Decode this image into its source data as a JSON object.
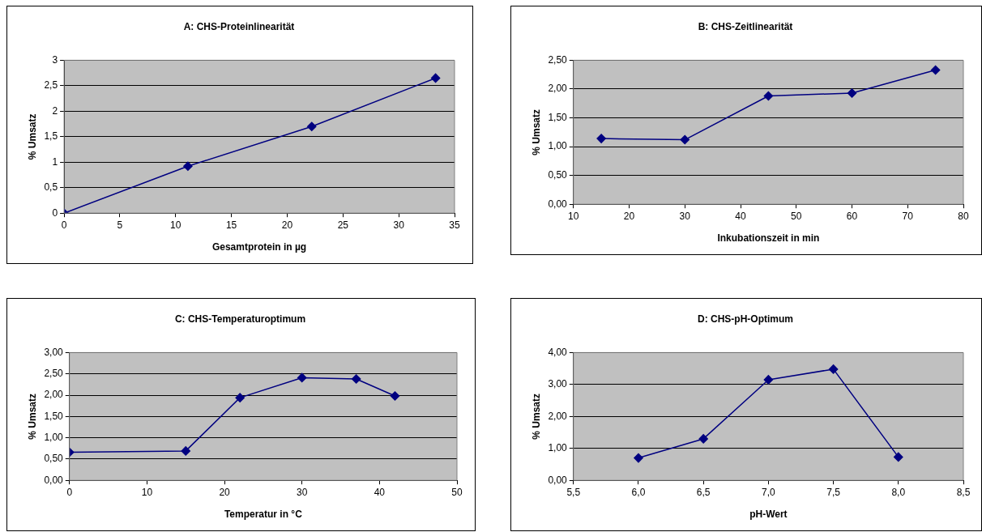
{
  "chart_data": [
    {
      "type": "line",
      "title": "A: CHS-Proteinlinearität",
      "xlabel": "Gesamtprotein in µg",
      "ylabel": "% Umsatz",
      "x": [
        0,
        11.1,
        22.2,
        33.3
      ],
      "series": [
        {
          "color": "#000080",
          "values": [
            0,
            0.92,
            1.7,
            2.65
          ]
        }
      ],
      "xlim": [
        0,
        35
      ],
      "xticks": [
        0,
        5,
        10,
        15,
        20,
        25,
        30,
        35
      ],
      "ylim": [
        0,
        3
      ],
      "yticks": [
        0,
        {
          "value": 0.5,
          "label": "0,5"
        },
        1,
        {
          "value": 1.5,
          "label": "1,5"
        },
        2,
        {
          "value": 2.5,
          "label": "2,5"
        },
        3
      ],
      "grid": "y",
      "legend": false,
      "marker": "diamond",
      "line_style": "solid"
    },
    {
      "type": "line",
      "title": "B: CHS-Zeitlinearität",
      "xlabel": "Inkubationszeit in min",
      "ylabel": "% Umsatz",
      "x": [
        15,
        30,
        45,
        60,
        75
      ],
      "series": [
        {
          "color": "#000080",
          "values": [
            1.14,
            1.12,
            1.88,
            1.93,
            2.33
          ]
        }
      ],
      "xlim": [
        10,
        80
      ],
      "xticks": [
        10,
        20,
        30,
        40,
        50,
        60,
        70,
        80
      ],
      "ylim": [
        0,
        2.5
      ],
      "yticks": [
        {
          "value": 0,
          "label": "0,00"
        },
        {
          "value": 0.5,
          "label": "0,50"
        },
        {
          "value": 1,
          "label": "1,00"
        },
        {
          "value": 1.5,
          "label": "1,50"
        },
        {
          "value": 2,
          "label": "2,00"
        },
        {
          "value": 2.5,
          "label": "2,50"
        }
      ],
      "grid": "y",
      "legend": false,
      "marker": "diamond",
      "line_style": "solid"
    },
    {
      "type": "line",
      "title": "C: CHS-Temperaturoptimum",
      "xlabel": "Temperatur in °C",
      "ylabel": "% Umsatz",
      "x": [
        0,
        15,
        22,
        30,
        37,
        42
      ],
      "series": [
        {
          "color": "#000080",
          "values": [
            0.66,
            0.69,
            1.94,
            2.41,
            2.38,
            1.98
          ]
        }
      ],
      "xlim": [
        0,
        50
      ],
      "xticks": [
        0,
        10,
        20,
        30,
        40,
        50
      ],
      "ylim": [
        0,
        3
      ],
      "yticks": [
        {
          "value": 0,
          "label": "0,00"
        },
        {
          "value": 0.5,
          "label": "0,50"
        },
        {
          "value": 1,
          "label": "1,00"
        },
        {
          "value": 1.5,
          "label": "1,50"
        },
        {
          "value": 2,
          "label": "2,00"
        },
        {
          "value": 2.5,
          "label": "2,50"
        },
        {
          "value": 3,
          "label": "3,00"
        }
      ],
      "grid": "y",
      "legend": false,
      "marker": "diamond",
      "line_style": "solid"
    },
    {
      "type": "line",
      "title": "D: CHS-pH-Optimum",
      "xlabel": "pH-Wert",
      "ylabel": "% Umsatz",
      "x": [
        6,
        6.5,
        7,
        7.5,
        8
      ],
      "series": [
        {
          "color": "#000080",
          "values": [
            0.7,
            1.3,
            3.15,
            3.48,
            0.73
          ]
        }
      ],
      "xlim": [
        5.5,
        8.5
      ],
      "xticks": [
        {
          "value": 5.5,
          "label": "5,5"
        },
        {
          "value": 6,
          "label": "6,0"
        },
        {
          "value": 6.5,
          "label": "6,5"
        },
        {
          "value": 7,
          "label": "7,0"
        },
        {
          "value": 7.5,
          "label": "7,5"
        },
        {
          "value": 8,
          "label": "8,0"
        },
        {
          "value": 8.5,
          "label": "8,5"
        }
      ],
      "ylim": [
        0,
        4
      ],
      "yticks": [
        {
          "value": 0,
          "label": "0,00"
        },
        {
          "value": 1,
          "label": "1,00"
        },
        {
          "value": 2,
          "label": "2,00"
        },
        {
          "value": 3,
          "label": "3,00"
        },
        {
          "value": 4,
          "label": "4,00"
        }
      ],
      "grid": "y",
      "legend": false,
      "marker": "diamond",
      "line_style": "solid"
    }
  ]
}
